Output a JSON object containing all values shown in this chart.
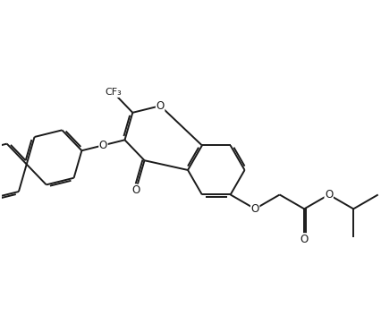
{
  "bg_color": "#ffffff",
  "line_color": "#1a1a1a",
  "line_width": 1.4,
  "dbo": 0.022,
  "fs": 8.5,
  "fig_width": 4.26,
  "fig_height": 3.72,
  "dpi": 100,
  "xlim": [
    0.0,
    4.26
  ],
  "ylim": [
    0.0,
    3.72
  ]
}
